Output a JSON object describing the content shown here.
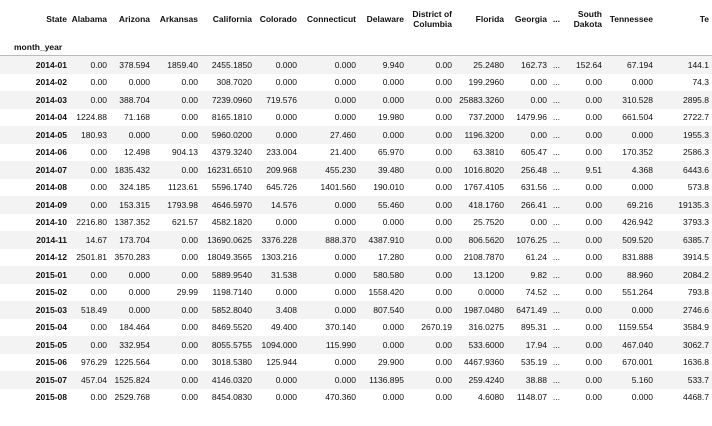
{
  "table": {
    "columns": [
      "State",
      "Alabama",
      "Arizona",
      "Arkansas",
      "California",
      "Colorado",
      "Connecticut",
      "Delaware",
      "District of Columbia",
      "Florida",
      "Georgia",
      "...",
      "South Dakota",
      "Tennessee",
      "Te"
    ],
    "index_name": "month_year",
    "rows": [
      [
        "2014-01",
        "0.00",
        "378.594",
        "1859.40",
        "2455.1850",
        "0.000",
        "0.000",
        "9.940",
        "0.00",
        "25.2480",
        "162.73",
        "...",
        "152.64",
        "67.194",
        "144.1"
      ],
      [
        "2014-02",
        "0.00",
        "0.000",
        "0.00",
        "308.7020",
        "0.000",
        "0.000",
        "0.000",
        "0.00",
        "199.2960",
        "0.00",
        "...",
        "0.00",
        "0.000",
        "74.3"
      ],
      [
        "2014-03",
        "0.00",
        "388.704",
        "0.00",
        "7239.0960",
        "719.576",
        "0.000",
        "0.000",
        "0.00",
        "25883.3260",
        "0.00",
        "...",
        "0.00",
        "310.528",
        "2895.8"
      ],
      [
        "2014-04",
        "1224.88",
        "71.168",
        "0.00",
        "8165.1810",
        "0.000",
        "0.000",
        "19.980",
        "0.00",
        "737.2000",
        "1479.96",
        "...",
        "0.00",
        "661.504",
        "2722.7"
      ],
      [
        "2014-05",
        "180.93",
        "0.000",
        "0.00",
        "5960.0200",
        "0.000",
        "27.460",
        "0.000",
        "0.00",
        "1196.3200",
        "0.00",
        "...",
        "0.00",
        "0.000",
        "1955.3"
      ],
      [
        "2014-06",
        "0.00",
        "12.498",
        "904.13",
        "4379.3240",
        "233.004",
        "21.400",
        "65.970",
        "0.00",
        "63.3810",
        "605.47",
        "...",
        "0.00",
        "170.352",
        "2586.3"
      ],
      [
        "2014-07",
        "0.00",
        "1835.432",
        "0.00",
        "16231.6510",
        "209.968",
        "455.230",
        "39.480",
        "0.00",
        "1016.8020",
        "256.48",
        "...",
        "9.51",
        "4.368",
        "6443.6"
      ],
      [
        "2014-08",
        "0.00",
        "324.185",
        "1123.61",
        "5596.1740",
        "645.726",
        "1401.560",
        "190.010",
        "0.00",
        "1767.4105",
        "631.56",
        "...",
        "0.00",
        "0.000",
        "573.8"
      ],
      [
        "2014-09",
        "0.00",
        "153.315",
        "1793.98",
        "4646.5970",
        "14.576",
        "0.000",
        "55.460",
        "0.00",
        "418.1760",
        "266.41",
        "...",
        "0.00",
        "69.216",
        "19135.3"
      ],
      [
        "2014-10",
        "2216.80",
        "1387.352",
        "621.57",
        "4582.1820",
        "0.000",
        "0.000",
        "0.000",
        "0.00",
        "25.7520",
        "0.00",
        "...",
        "0.00",
        "426.942",
        "3793.3"
      ],
      [
        "2014-11",
        "14.67",
        "173.704",
        "0.00",
        "13690.0625",
        "3376.228",
        "888.370",
        "4387.910",
        "0.00",
        "806.5620",
        "1076.25",
        "...",
        "0.00",
        "509.520",
        "6385.7"
      ],
      [
        "2014-12",
        "2501.81",
        "3570.283",
        "0.00",
        "18049.3565",
        "1303.216",
        "0.000",
        "17.280",
        "0.00",
        "2108.7870",
        "61.24",
        "...",
        "0.00",
        "831.888",
        "3914.5"
      ],
      [
        "2015-01",
        "0.00",
        "0.000",
        "0.00",
        "5889.9540",
        "31.538",
        "0.000",
        "580.580",
        "0.00",
        "13.1200",
        "9.82",
        "...",
        "0.00",
        "88.960",
        "2084.2"
      ],
      [
        "2015-02",
        "0.00",
        "0.000",
        "29.99",
        "1198.7140",
        "0.000",
        "0.000",
        "1558.420",
        "0.00",
        "0.0000",
        "74.52",
        "...",
        "0.00",
        "551.264",
        "793.8"
      ],
      [
        "2015-03",
        "518.49",
        "0.000",
        "0.00",
        "5852.8040",
        "3.408",
        "0.000",
        "807.540",
        "0.00",
        "1987.0480",
        "6471.49",
        "...",
        "0.00",
        "0.000",
        "2746.6"
      ],
      [
        "2015-04",
        "0.00",
        "184.464",
        "0.00",
        "8469.5520",
        "49.400",
        "370.140",
        "0.000",
        "2670.19",
        "316.0275",
        "895.31",
        "...",
        "0.00",
        "1159.554",
        "3584.9"
      ],
      [
        "2015-05",
        "0.00",
        "332.954",
        "0.00",
        "8055.5755",
        "1094.000",
        "115.990",
        "0.000",
        "0.00",
        "533.6000",
        "17.94",
        "...",
        "0.00",
        "467.040",
        "3062.7"
      ],
      [
        "2015-06",
        "976.29",
        "1225.564",
        "0.00",
        "3018.5380",
        "125.944",
        "0.000",
        "29.900",
        "0.00",
        "4467.9360",
        "535.19",
        "...",
        "0.00",
        "670.001",
        "1636.8"
      ],
      [
        "2015-07",
        "457.04",
        "1525.824",
        "0.00",
        "4146.0320",
        "0.000",
        "0.000",
        "1136.895",
        "0.00",
        "259.4240",
        "38.88",
        "...",
        "0.00",
        "5.160",
        "533.7"
      ],
      [
        "2015-08",
        "0.00",
        "2529.768",
        "0.00",
        "8454.0830",
        "0.000",
        "470.360",
        "0.000",
        "0.00",
        "4.6080",
        "1148.07",
        "...",
        "0.00",
        "0.000",
        "4468.7"
      ]
    ]
  }
}
